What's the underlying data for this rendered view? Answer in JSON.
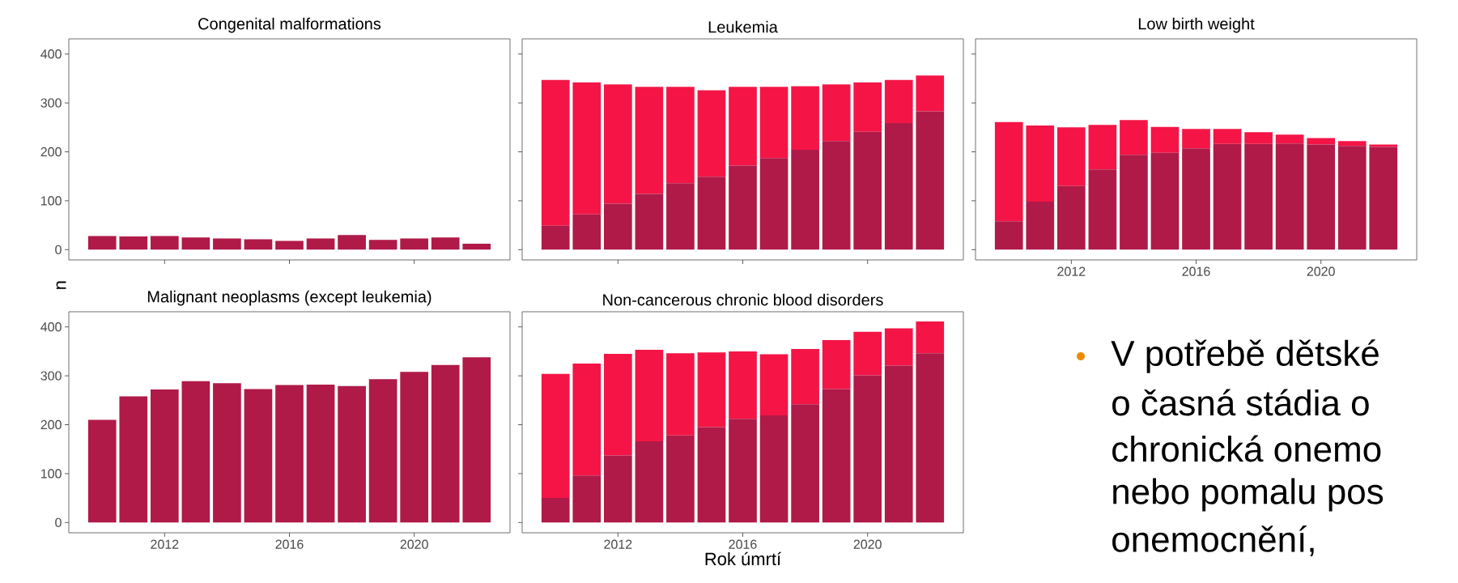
{
  "chart_data": [
    {
      "type": "bar",
      "title": "Congenital malformations",
      "x": [
        2010,
        2011,
        2012,
        2013,
        2014,
        2015,
        2016,
        2017,
        2018,
        2019,
        2020,
        2021,
        2022
      ],
      "xlim": [
        2008.93,
        2023.07
      ],
      "xticks": [
        2012,
        2016,
        2020
      ],
      "ylim": [
        -21,
        431
      ],
      "yticks": [
        0,
        100,
        200,
        300,
        400
      ],
      "tick_labels": "y",
      "series": [
        {
          "color": "#b01a48",
          "values": [
            28,
            27,
            28,
            25,
            23,
            21,
            18,
            23,
            30,
            20,
            23,
            25,
            12
          ]
        }
      ]
    },
    {
      "type": "bar",
      "title": "Leukemia",
      "stacked": true,
      "x": [
        2010,
        2011,
        2012,
        2013,
        2014,
        2015,
        2016,
        2017,
        2018,
        2019,
        2020,
        2021,
        2022
      ],
      "xlim": [
        2008.93,
        2023.07
      ],
      "xticks": [
        2012,
        2016,
        2020
      ],
      "ylim": [
        -21,
        431
      ],
      "yticks": [
        0,
        100,
        200,
        300,
        400
      ],
      "tick_labels": false,
      "series": [
        {
          "color": "#b01a48",
          "values": [
            49,
            72,
            94,
            114,
            136,
            149,
            172,
            187,
            204,
            222,
            241,
            259,
            283
          ]
        },
        {
          "color": "#f41546",
          "values": [
            298,
            270,
            244,
            219,
            197,
            177,
            161,
            146,
            130,
            116,
            101,
            88,
            73
          ]
        }
      ]
    },
    {
      "type": "bar",
      "title": "Low birth weight",
      "stacked": true,
      "x": [
        2010,
        2011,
        2012,
        2013,
        2014,
        2015,
        2016,
        2017,
        2018,
        2019,
        2020,
        2021,
        2022
      ],
      "xlim": [
        2008.93,
        2023.07
      ],
      "xticks": [
        2012,
        2016,
        2020
      ],
      "ylim": [
        -21,
        431
      ],
      "yticks": [
        0,
        100,
        200,
        300,
        400
      ],
      "tick_labels": "x",
      "series": [
        {
          "color": "#b01a48",
          "values": [
            58,
            98,
            130,
            164,
            194,
            198,
            207,
            216,
            216,
            217,
            215,
            212,
            210
          ]
        },
        {
          "color": "#f41546",
          "values": [
            203,
            156,
            120,
            91,
            71,
            53,
            40,
            31,
            24,
            18,
            13,
            10,
            5
          ]
        }
      ]
    },
    {
      "type": "bar",
      "title": "Malignant neoplasms (except leukemia)",
      "ylabel": "n",
      "x": [
        2010,
        2011,
        2012,
        2013,
        2014,
        2015,
        2016,
        2017,
        2018,
        2019,
        2020,
        2021,
        2022
      ],
      "xlim": [
        2008.93,
        2023.07
      ],
      "xticks": [
        2012,
        2016,
        2020
      ],
      "ylim": [
        -21,
        431
      ],
      "yticks": [
        0,
        100,
        200,
        300,
        400
      ],
      "series": [
        {
          "color": "#b01a48",
          "values": [
            210,
            258,
            272,
            289,
            285,
            273,
            281,
            282,
            279,
            293,
            308,
            322,
            338
          ]
        }
      ]
    },
    {
      "type": "bar",
      "title": "Non-cancerous chronic blood disorders",
      "xlabel": "Rok úmrtí",
      "stacked": true,
      "x": [
        2010,
        2011,
        2012,
        2013,
        2014,
        2015,
        2016,
        2017,
        2018,
        2019,
        2020,
        2021,
        2022
      ],
      "xlim": [
        2008.93,
        2023.07
      ],
      "xticks": [
        2012,
        2016,
        2020
      ],
      "ylim": [
        -21,
        431
      ],
      "yticks": [
        0,
        100,
        200,
        300,
        400
      ],
      "tick_labels": "x",
      "series": [
        {
          "color": "#b01a48",
          "values": [
            50,
            96,
            137,
            166,
            178,
            195,
            212,
            219,
            242,
            273,
            301,
            321,
            346
          ]
        },
        {
          "color": "#f41546",
          "values": [
            254,
            229,
            208,
            187,
            168,
            153,
            138,
            125,
            113,
            100,
            89,
            76,
            65
          ]
        }
      ]
    },
    {
      "type": "other",
      "annotations": [
        "V potřebě dětské",
        "o časná stádia o",
        "chronická onemo",
        "nebo pomalu pos",
        "onemocnění,"
      ]
    }
  ]
}
